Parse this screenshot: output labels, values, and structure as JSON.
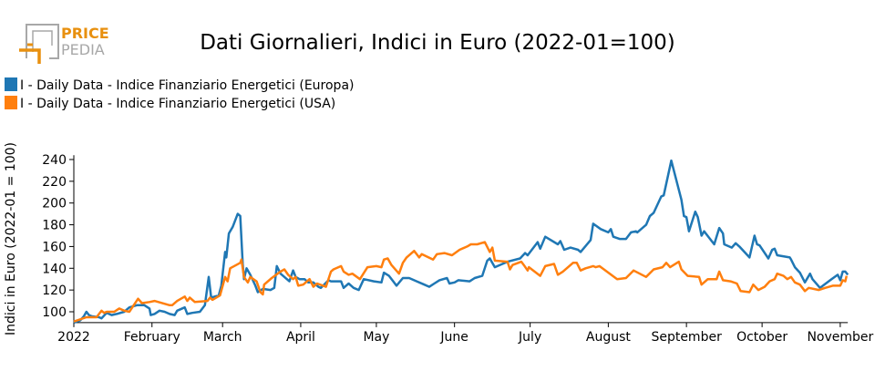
{
  "logo": {
    "text_top": "PRICE",
    "text_bottom": "PEDIA",
    "accent": "#e8900f",
    "gray": "#a8a8a8"
  },
  "chart_data": {
    "type": "line",
    "title": "Dati Giornalieri, Indici in Euro (2022-01=100)",
    "xlabel": "",
    "ylabel": "Indici in Euro (2022-01 = 100)",
    "x_unit": "day of year 2022 (0 = 1 January)",
    "xlim": [
      0,
      307
    ],
    "ylim": [
      90,
      244
    ],
    "y_ticks": [
      100,
      120,
      140,
      160,
      180,
      200,
      220,
      240
    ],
    "x_ticks": [
      {
        "day": 0,
        "label": "2022"
      },
      {
        "day": 31,
        "label": "February"
      },
      {
        "day": 59,
        "label": "March"
      },
      {
        "day": 90,
        "label": "April"
      },
      {
        "day": 120,
        "label": "May"
      },
      {
        "day": 151,
        "label": "June"
      },
      {
        "day": 181,
        "label": "July"
      },
      {
        "day": 212,
        "label": "August"
      },
      {
        "day": 243,
        "label": "September"
      },
      {
        "day": 273,
        "label": "October"
      },
      {
        "day": 304,
        "label": "November"
      }
    ],
    "grid": false,
    "legend_position": "top-left",
    "series": [
      {
        "name": "I - Daily Data - Indice Finanziario Energetici (Europa)",
        "color": "#1f77b4",
        "points": [
          [
            0,
            90
          ],
          [
            2.5,
            92
          ],
          [
            4,
            96
          ],
          [
            5,
            100
          ],
          [
            6,
            97
          ],
          [
            7,
            96
          ],
          [
            10,
            95
          ],
          [
            11,
            94
          ],
          [
            13,
            99
          ],
          [
            15,
            97
          ],
          [
            17,
            98
          ],
          [
            20,
            100
          ],
          [
            22,
            104
          ],
          [
            25,
            106
          ],
          [
            28,
            106
          ],
          [
            30,
            103
          ],
          [
            30.5,
            97
          ],
          [
            32,
            98
          ],
          [
            34,
            101
          ],
          [
            36,
            100
          ],
          [
            38,
            98
          ],
          [
            40,
            97
          ],
          [
            41,
            101
          ],
          [
            44,
            104
          ],
          [
            45,
            98
          ],
          [
            47,
            99
          ],
          [
            50,
            100
          ],
          [
            52,
            106
          ],
          [
            53.5,
            132
          ],
          [
            54.5,
            113
          ],
          [
            57.5,
            115
          ],
          [
            58.5,
            124
          ],
          [
            60,
            155
          ],
          [
            60.5,
            150
          ],
          [
            61.5,
            172
          ],
          [
            63,
            178
          ],
          [
            65,
            190
          ],
          [
            66,
            188
          ],
          [
            67,
            144
          ],
          [
            67.5,
            130
          ],
          [
            68.5,
            140
          ],
          [
            70,
            134
          ],
          [
            72,
            124
          ],
          [
            73,
            118
          ],
          [
            75,
            121
          ],
          [
            78,
            120
          ],
          [
            79.5,
            122
          ],
          [
            80.5,
            142
          ],
          [
            82,
            135
          ],
          [
            85.5,
            128
          ],
          [
            87,
            138
          ],
          [
            88,
            132
          ],
          [
            89.5,
            130
          ],
          [
            91.5,
            130
          ],
          [
            93,
            127
          ],
          [
            95,
            127
          ],
          [
            97,
            123
          ],
          [
            98,
            122
          ],
          [
            101,
            129
          ],
          [
            102,
            128
          ],
          [
            106,
            128
          ],
          [
            107,
            122
          ],
          [
            109,
            126
          ],
          [
            111,
            122
          ],
          [
            113,
            120
          ],
          [
            115,
            130
          ],
          [
            119,
            128
          ],
          [
            122,
            127
          ],
          [
            123,
            136
          ],
          [
            125,
            133
          ],
          [
            127,
            127
          ],
          [
            128,
            124
          ],
          [
            130.5,
            131
          ],
          [
            133,
            131
          ],
          [
            136,
            128
          ],
          [
            139,
            125
          ],
          [
            141,
            123
          ],
          [
            143,
            126
          ],
          [
            145,
            129
          ],
          [
            148,
            131
          ],
          [
            149,
            126
          ],
          [
            151,
            127
          ],
          [
            152.5,
            129
          ],
          [
            157,
            128
          ],
          [
            159,
            131
          ],
          [
            162,
            133
          ],
          [
            164,
            147
          ],
          [
            165,
            149
          ],
          [
            167,
            141
          ],
          [
            172,
            146
          ],
          [
            177,
            149
          ],
          [
            179,
            154
          ],
          [
            180,
            152
          ],
          [
            184,
            164
          ],
          [
            185,
            158
          ],
          [
            187,
            169
          ],
          [
            192,
            162
          ],
          [
            193,
            165
          ],
          [
            194.5,
            157
          ],
          [
            197,
            159
          ],
          [
            200,
            157
          ],
          [
            201,
            155
          ],
          [
            205,
            166
          ],
          [
            206,
            181
          ],
          [
            209,
            176
          ],
          [
            212,
            173
          ],
          [
            213,
            176
          ],
          [
            214,
            169
          ],
          [
            216.5,
            167
          ],
          [
            219,
            167
          ],
          [
            221,
            173
          ],
          [
            223,
            174
          ],
          [
            223.5,
            173
          ],
          [
            227,
            180
          ],
          [
            228.5,
            188
          ],
          [
            230,
            191
          ],
          [
            233,
            206
          ],
          [
            234,
            207
          ],
          [
            237,
            239
          ],
          [
            241,
            203
          ],
          [
            242,
            188
          ],
          [
            243,
            187
          ],
          [
            244,
            174
          ],
          [
            246.5,
            192
          ],
          [
            247.5,
            187
          ],
          [
            249,
            170
          ],
          [
            250,
            174
          ],
          [
            254,
            162
          ],
          [
            256,
            177
          ],
          [
            257.5,
            172
          ],
          [
            258,
            162
          ],
          [
            261,
            159
          ],
          [
            262.5,
            163
          ],
          [
            264,
            160
          ],
          [
            268,
            150
          ],
          [
            270,
            170
          ],
          [
            271,
            162
          ],
          [
            272,
            161
          ],
          [
            275.5,
            149
          ],
          [
            277,
            157
          ],
          [
            278,
            158
          ],
          [
            279,
            152
          ],
          [
            284,
            150
          ],
          [
            284.5,
            148
          ],
          [
            286,
            141
          ],
          [
            288,
            136
          ],
          [
            290,
            127
          ],
          [
            292,
            135
          ],
          [
            293,
            130
          ],
          [
            296,
            122
          ],
          [
            300,
            129
          ],
          [
            303,
            134
          ],
          [
            304,
            129
          ],
          [
            305,
            137
          ],
          [
            306,
            137
          ],
          [
            307,
            134
          ]
        ]
      },
      {
        "name": "I - Daily Data - Indice Finanziario Energetici (USA)",
        "color": "#ff7f0e",
        "points": [
          [
            0,
            91
          ],
          [
            5,
            95
          ],
          [
            9,
            95
          ],
          [
            11,
            101
          ],
          [
            12,
            99
          ],
          [
            13,
            100
          ],
          [
            16,
            100
          ],
          [
            18,
            103
          ],
          [
            20,
            101
          ],
          [
            22,
            100
          ],
          [
            25.5,
            112
          ],
          [
            27,
            108
          ],
          [
            30,
            109
          ],
          [
            32,
            110
          ],
          [
            38,
            106
          ],
          [
            39,
            106
          ],
          [
            41,
            110
          ],
          [
            44,
            114
          ],
          [
            45,
            110
          ],
          [
            46,
            113
          ],
          [
            48,
            109
          ],
          [
            53,
            110
          ],
          [
            54,
            113
          ],
          [
            55,
            111
          ],
          [
            58,
            115
          ],
          [
            60,
            132
          ],
          [
            61,
            128
          ],
          [
            62,
            140
          ],
          [
            66,
            145
          ],
          [
            66.5,
            148
          ],
          [
            67,
            140
          ],
          [
            67.5,
            132
          ],
          [
            69,
            127
          ],
          [
            70,
            132
          ],
          [
            72.5,
            128
          ],
          [
            74,
            118
          ],
          [
            75,
            116
          ],
          [
            75.5,
            125
          ],
          [
            78.5,
            131
          ],
          [
            82,
            137
          ],
          [
            83.5,
            139
          ],
          [
            85,
            134
          ],
          [
            87,
            130
          ],
          [
            88,
            132
          ],
          [
            89,
            124
          ],
          [
            91,
            125
          ],
          [
            93.5,
            130
          ],
          [
            95,
            123
          ],
          [
            96.5,
            126
          ],
          [
            100,
            123
          ],
          [
            102,
            137
          ],
          [
            103,
            139
          ],
          [
            106,
            142
          ],
          [
            107,
            137
          ],
          [
            109,
            134
          ],
          [
            110.5,
            135
          ],
          [
            113.5,
            130
          ],
          [
            116.5,
            141
          ],
          [
            120,
            142
          ],
          [
            122,
            141
          ],
          [
            123,
            148
          ],
          [
            124.5,
            149
          ],
          [
            126,
            143
          ],
          [
            129,
            135
          ],
          [
            130.5,
            145
          ],
          [
            132,
            150
          ],
          [
            135,
            156
          ],
          [
            137,
            150
          ],
          [
            138,
            153
          ],
          [
            142.5,
            148
          ],
          [
            144,
            153
          ],
          [
            147,
            154
          ],
          [
            150,
            152
          ],
          [
            153,
            157
          ],
          [
            156,
            160
          ],
          [
            157.5,
            162
          ],
          [
            160,
            162
          ],
          [
            163,
            164
          ],
          [
            165,
            155
          ],
          [
            166,
            159
          ],
          [
            167,
            147
          ],
          [
            172,
            146
          ],
          [
            173,
            139
          ],
          [
            174,
            143
          ],
          [
            177.5,
            146
          ],
          [
            178.5,
            143
          ],
          [
            180,
            138
          ],
          [
            180.5,
            141
          ],
          [
            185,
            133
          ],
          [
            187,
            142
          ],
          [
            190.5,
            144
          ],
          [
            192,
            134
          ],
          [
            194,
            137
          ],
          [
            198,
            145
          ],
          [
            199.5,
            145
          ],
          [
            201,
            138
          ],
          [
            203,
            140
          ],
          [
            206,
            142
          ],
          [
            207,
            141
          ],
          [
            208.5,
            142
          ],
          [
            215.5,
            130
          ],
          [
            219,
            131
          ],
          [
            222,
            138
          ],
          [
            227,
            132
          ],
          [
            230,
            139
          ],
          [
            233.5,
            141
          ],
          [
            235,
            145
          ],
          [
            236.5,
            141
          ],
          [
            240,
            146
          ],
          [
            241,
            139
          ],
          [
            243.5,
            133
          ],
          [
            248,
            132
          ],
          [
            249,
            125
          ],
          [
            251.5,
            130
          ],
          [
            255,
            130
          ],
          [
            256,
            137
          ],
          [
            257.5,
            129
          ],
          [
            260.5,
            128
          ],
          [
            263,
            126
          ],
          [
            264.5,
            119
          ],
          [
            268,
            118
          ],
          [
            269.5,
            125
          ],
          [
            271.5,
            120
          ],
          [
            274,
            123
          ],
          [
            276,
            128
          ],
          [
            278,
            130
          ],
          [
            279,
            135
          ],
          [
            281.5,
            133
          ],
          [
            283,
            130
          ],
          [
            284.5,
            132
          ],
          [
            286,
            127
          ],
          [
            288,
            125
          ],
          [
            290,
            119
          ],
          [
            291.5,
            122
          ],
          [
            295.5,
            120
          ],
          [
            298,
            122
          ],
          [
            301,
            124
          ],
          [
            304,
            124
          ],
          [
            305,
            129
          ],
          [
            306,
            128
          ],
          [
            306.5,
            133
          ]
        ]
      }
    ]
  }
}
